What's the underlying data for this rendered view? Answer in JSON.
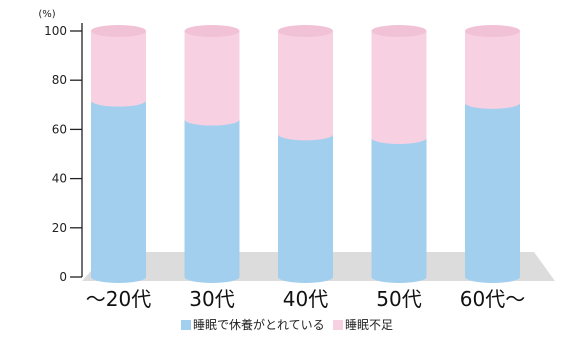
{
  "chart_data": {
    "type": "bar",
    "stacked": true,
    "categories": [
      "～20代",
      "30代",
      "40代",
      "50代",
      "60代～"
    ],
    "series": [
      {
        "name": "睡眠で休養がとれている",
        "color": "#a3cfee",
        "values": [
          71.7,
          64,
          58,
          56.5,
          70.8
        ]
      },
      {
        "name": "睡眠不足",
        "color": "#f7d0e2",
        "values": [
          28.3,
          36,
          42,
          43.5,
          29.2
        ]
      }
    ],
    "ylim": [
      0,
      100
    ],
    "yticks": [
      0,
      20,
      40,
      60,
      80,
      100
    ],
    "yunit": "(%)",
    "grid": false,
    "legend_position": "bottom-right",
    "floor_color": "#dcdcdc"
  }
}
